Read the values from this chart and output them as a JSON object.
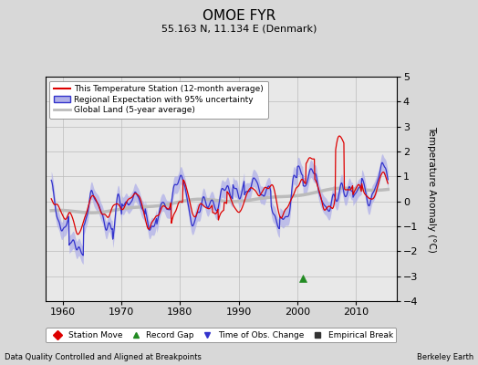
{
  "title": "OMOE FYR",
  "subtitle": "55.163 N, 11.134 E (Denmark)",
  "ylabel": "Temperature Anomaly (°C)",
  "xlabel_note": "Data Quality Controlled and Aligned at Breakpoints",
  "credit": "Berkeley Earth",
  "ylim": [
    -4,
    5
  ],
  "xlim": [
    1957,
    2017
  ],
  "yticks": [
    -4,
    -3,
    -2,
    -1,
    0,
    1,
    2,
    3,
    4,
    5
  ],
  "xticks": [
    1960,
    1970,
    1980,
    1990,
    2000,
    2010
  ],
  "bg_color": "#d8d8d8",
  "plot_bg_color": "#e8e8e8",
  "station_color": "#dd0000",
  "regional_color": "#3333cc",
  "regional_fill_color": "#b0b0e8",
  "global_color": "#bbbbbb",
  "record_gap_marker_x": 2001,
  "record_gap_marker_y": -3.1,
  "legend_items": [
    {
      "label": "This Temperature Station (12-month average)",
      "color": "#dd0000",
      "lw": 1.5
    },
    {
      "label": "Regional Expectation with 95% uncertainty",
      "color": "#3333cc",
      "fill": "#b0b0e8",
      "lw": 1.5
    },
    {
      "label": "Global Land (5-year average)",
      "color": "#bbbbbb",
      "lw": 2
    }
  ],
  "bottom_legend_items": [
    {
      "label": "Station Move",
      "marker": "D",
      "color": "#dd0000"
    },
    {
      "label": "Record Gap",
      "marker": "^",
      "color": "#228B22"
    },
    {
      "label": "Time of Obs. Change",
      "marker": "v",
      "color": "#3333cc"
    },
    {
      "label": "Empirical Break",
      "marker": "s",
      "color": "#333333"
    }
  ]
}
